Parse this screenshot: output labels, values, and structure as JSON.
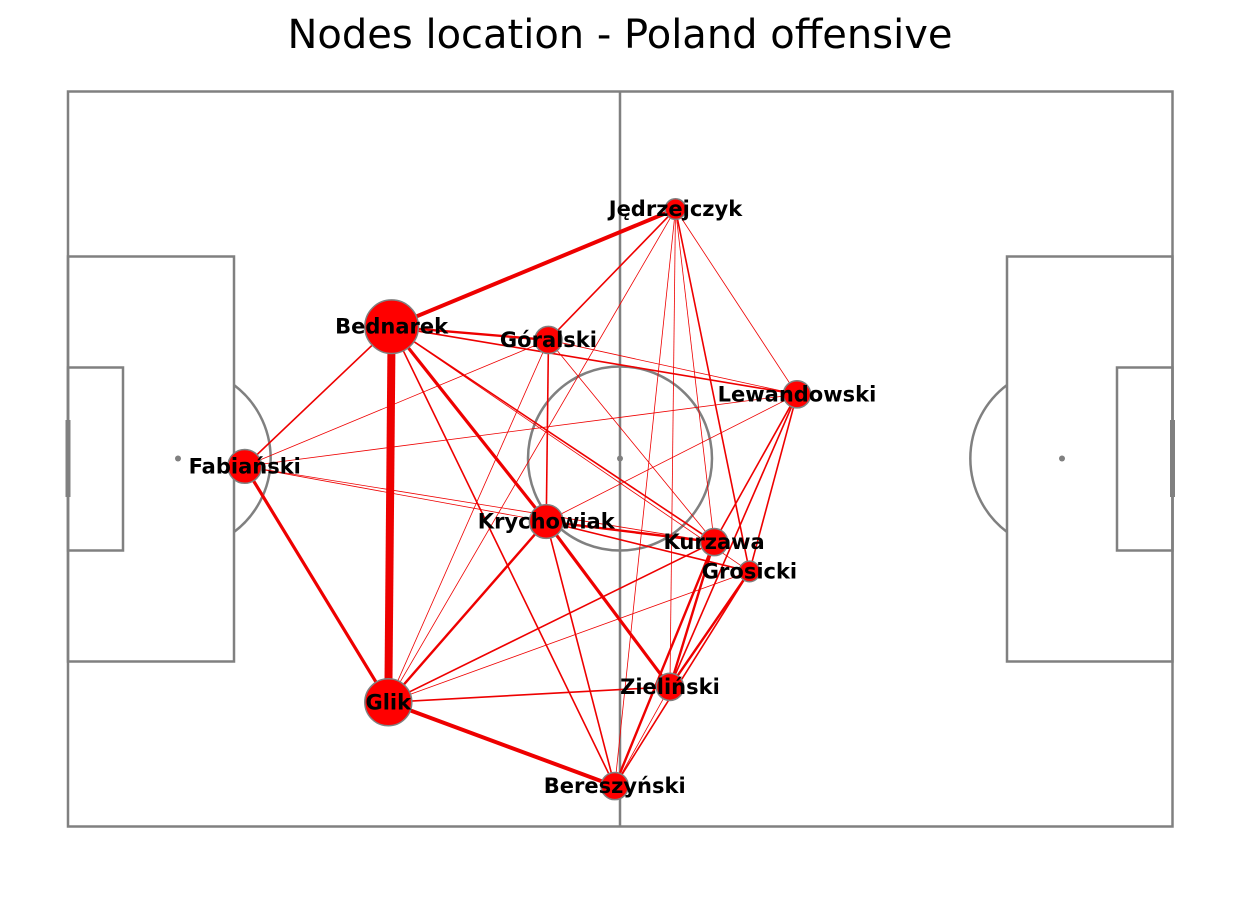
{
  "title": "Nodes location - Poland offensive",
  "colors": {
    "pitch_lines": "#808080",
    "node_fill": "#ff0000",
    "node_edge": "#808080",
    "edge": "#ee0000"
  },
  "network": {
    "nodes": [
      {
        "id": "Jedrzejczyk",
        "label": "Jędrzejczyk",
        "x": 55.0,
        "y": 84.0,
        "size": 1
      },
      {
        "id": "Bednarek",
        "label": "Bednarek",
        "x": 29.3,
        "y": 68.0,
        "size": 6
      },
      {
        "id": "Goralski",
        "label": "Góralski",
        "x": 43.5,
        "y": 66.2,
        "size": 2
      },
      {
        "id": "Lewandowski",
        "label": "Lewandowski",
        "x": 66.0,
        "y": 58.8,
        "size": 2
      },
      {
        "id": "Fabianski",
        "label": "Fabiański",
        "x": 16.0,
        "y": 49.0,
        "size": 3
      },
      {
        "id": "Krychowiak",
        "label": "Krychowiak",
        "x": 43.3,
        "y": 41.5,
        "size": 3
      },
      {
        "id": "Kurzawa",
        "label": "Kurzawa",
        "x": 58.5,
        "y": 38.7,
        "size": 2
      },
      {
        "id": "Grosicki",
        "label": "Grosicki",
        "x": 61.7,
        "y": 34.7,
        "size": 1
      },
      {
        "id": "Zielinski",
        "label": "Zieliński",
        "x": 54.5,
        "y": 19.0,
        "size": 2
      },
      {
        "id": "Glik",
        "label": "Glik",
        "x": 29.0,
        "y": 16.9,
        "size": 5
      },
      {
        "id": "Bereszynski",
        "label": "Bereszyński",
        "x": 49.5,
        "y": 5.5,
        "size": 2
      }
    ],
    "edges": [
      {
        "source": "Bednarek",
        "target": "Glik",
        "weight": 10
      },
      {
        "source": "Bednarek",
        "target": "Jedrzejczyk",
        "weight": 5
      },
      {
        "source": "Glik",
        "target": "Bereszynski",
        "weight": 5
      },
      {
        "source": "Fabianski",
        "target": "Glik",
        "weight": 4
      },
      {
        "source": "Bednarek",
        "target": "Krychowiak",
        "weight": 4
      },
      {
        "source": "Krychowiak",
        "target": "Zielinski",
        "weight": 4
      },
      {
        "source": "Bednarek",
        "target": "Goralski",
        "weight": 3
      },
      {
        "source": "Glik",
        "target": "Krychowiak",
        "weight": 3
      },
      {
        "source": "Zielinski",
        "target": "Grosicki",
        "weight": 3
      },
      {
        "source": "Zielinski",
        "target": "Kurzawa",
        "weight": 3
      },
      {
        "source": "Bereszynski",
        "target": "Kurzawa",
        "weight": 3
      },
      {
        "source": "Krychowiak",
        "target": "Kurzawa",
        "weight": 3
      },
      {
        "source": "Goralski",
        "target": "Krychowiak",
        "weight": 2
      },
      {
        "source": "Zielinski",
        "target": "Lewandowski",
        "weight": 2
      },
      {
        "source": "Kurzawa",
        "target": "Lewandowski",
        "weight": 2
      },
      {
        "source": "Bednarek",
        "target": "Fabianski",
        "weight": 2
      },
      {
        "source": "Bednarek",
        "target": "Bereszynski",
        "weight": 2
      },
      {
        "source": "Bednarek",
        "target": "Kurzawa",
        "weight": 2
      },
      {
        "source": "Glik",
        "target": "Zielinski",
        "weight": 2
      },
      {
        "source": "Glik",
        "target": "Kurzawa",
        "weight": 2
      },
      {
        "source": "Bednarek",
        "target": "Lewandowski",
        "weight": 2
      },
      {
        "source": "Goralski",
        "target": "Jedrzejczyk",
        "weight": 2
      },
      {
        "source": "Jedrzejczyk",
        "target": "Grosicki",
        "weight": 2
      },
      {
        "source": "Grosicki",
        "target": "Lewandowski",
        "weight": 2
      },
      {
        "source": "Krychowiak",
        "target": "Bereszynski",
        "weight": 2
      },
      {
        "source": "Krychowiak",
        "target": "Grosicki",
        "weight": 2
      },
      {
        "source": "Bereszynski",
        "target": "Grosicki",
        "weight": 2
      },
      {
        "source": "Jedrzejczyk",
        "target": "Kurzawa",
        "weight": 1
      },
      {
        "source": "Jedrzejczyk",
        "target": "Lewandowski",
        "weight": 1
      },
      {
        "source": "Jedrzejczyk",
        "target": "Zielinski",
        "weight": 1
      },
      {
        "source": "Jedrzejczyk",
        "target": "Bereszynski",
        "weight": 1
      },
      {
        "source": "Jedrzejczyk",
        "target": "Glik",
        "weight": 1
      },
      {
        "source": "Goralski",
        "target": "Lewandowski",
        "weight": 1
      },
      {
        "source": "Goralski",
        "target": "Fabianski",
        "weight": 1
      },
      {
        "source": "Goralski",
        "target": "Glik",
        "weight": 1
      },
      {
        "source": "Goralski",
        "target": "Kurzawa",
        "weight": 1
      },
      {
        "source": "Fabianski",
        "target": "Lewandowski",
        "weight": 1
      },
      {
        "source": "Fabianski",
        "target": "Krychowiak",
        "weight": 1
      },
      {
        "source": "Fabianski",
        "target": "Kurzawa",
        "weight": 1
      },
      {
        "source": "Glik",
        "target": "Grosicki",
        "weight": 1
      },
      {
        "source": "Krychowiak",
        "target": "Lewandowski",
        "weight": 1
      },
      {
        "source": "Bereszynski",
        "target": "Zielinski",
        "weight": 1
      },
      {
        "source": "Bednarek",
        "target": "Grosicki",
        "weight": 1
      }
    ]
  }
}
